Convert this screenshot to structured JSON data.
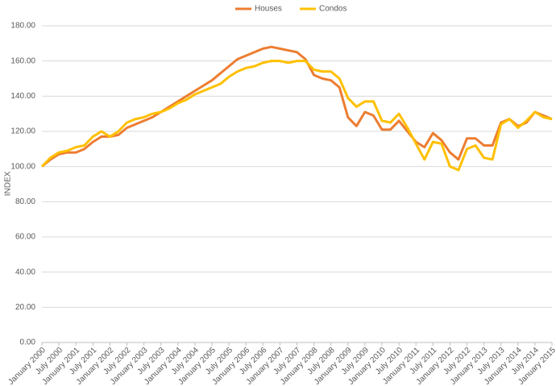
{
  "chart_data": {
    "type": "line",
    "y_label": "INDEX",
    "categories": [
      "January 2000",
      null,
      "July 2000",
      null,
      "January 2001",
      null,
      "July 2001",
      null,
      "January 2002",
      null,
      "July 2002",
      null,
      "January 2003",
      null,
      "July 2003",
      null,
      "January 2004",
      null,
      "July 2004",
      null,
      "January 2005",
      null,
      "July 2005",
      null,
      "January 2006",
      null,
      "July 2006",
      null,
      "January 2007",
      null,
      "July 2007",
      null,
      "January 2008",
      null,
      "July 2008",
      null,
      "January 2009",
      null,
      "July 2009",
      null,
      "January 2010",
      null,
      "July 2010",
      null,
      "January 2011",
      null,
      "July 2011",
      null,
      "January 2012",
      null,
      "July 2012",
      null,
      "January 2013",
      null,
      "July 2013",
      null,
      "January 2014",
      null,
      "July 2014",
      null,
      "January 2015"
    ],
    "series": [
      {
        "name": "Houses",
        "color": "#ed7d31",
        "values": [
          100,
          104,
          107,
          108,
          108,
          110,
          114,
          117,
          117,
          118,
          122,
          124,
          126,
          128,
          131,
          134,
          137,
          140,
          143,
          146,
          149,
          153,
          157,
          161,
          163,
          165,
          167,
          168,
          167,
          166,
          165,
          161,
          152,
          150,
          149,
          145,
          128,
          123,
          131,
          129,
          121,
          121,
          126,
          120,
          114,
          111,
          119,
          115,
          108,
          104,
          116,
          116,
          112,
          112,
          125,
          127,
          123,
          125,
          131,
          129,
          127
        ]
      },
      {
        "name": "Condos",
        "color": "#ffc000",
        "values": [
          100,
          105,
          108,
          109,
          111,
          112,
          117,
          120,
          117,
          120,
          125,
          127,
          128,
          130,
          131,
          133,
          136,
          138,
          141,
          143,
          145,
          147,
          151,
          154,
          156,
          157,
          159,
          160,
          160,
          159,
          160,
          160,
          155,
          154,
          154,
          150,
          139,
          134,
          137,
          137,
          126,
          125,
          130,
          122,
          113,
          104,
          114,
          113,
          100,
          98,
          110,
          112,
          105,
          104,
          124,
          127,
          122,
          126,
          131,
          128,
          127
        ]
      }
    ],
    "ylim": [
      0,
      180
    ],
    "yticks": [
      {
        "value": 0,
        "label": "0.00"
      },
      {
        "value": 20,
        "label": "20.00"
      },
      {
        "value": 40,
        "label": "40.00"
      },
      {
        "value": 60,
        "label": "60.00"
      },
      {
        "value": 80,
        "label": "80.00"
      },
      {
        "value": 100,
        "label": "100.00"
      },
      {
        "value": 120,
        "label": "120.00"
      },
      {
        "value": 140,
        "label": "140.00"
      },
      {
        "value": 160,
        "label": "160.00"
      },
      {
        "value": 180,
        "label": "180.00"
      }
    ],
    "grid": true,
    "legend": "top"
  }
}
